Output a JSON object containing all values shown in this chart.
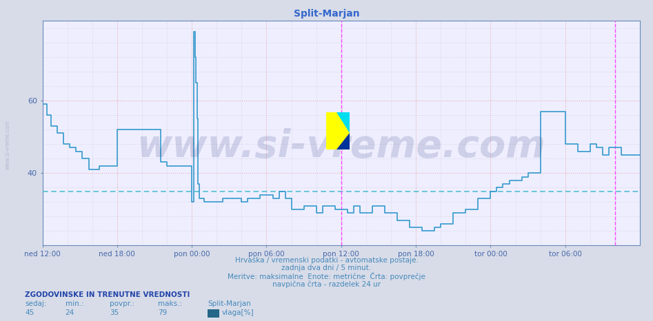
{
  "title": "Split-Marjan",
  "title_color": "#3366cc",
  "bg_color": "#d8dce8",
  "plot_bg_color": "#eeeeff",
  "ylabel": "",
  "xlabel": "",
  "xlim": [
    0,
    576
  ],
  "ylim": [
    20,
    82
  ],
  "yticks": [
    40,
    60
  ],
  "avg_line_y": 35,
  "avg_line_color": "#44bbcc",
  "vline1_x": 288,
  "vline2_x": 552,
  "vline_color": "#ff44ff",
  "line_color": "#3399cc",
  "line_width": 1.2,
  "watermark_text": "www.si-vreme.com",
  "watermark_color": "#1a2266",
  "watermark_alpha": 0.15,
  "watermark_fontsize": 40,
  "footer_line1": "Hrvaška / vremenski podatki - avtomatske postaje.",
  "footer_line2": "zadnja dva dni / 5 minut.",
  "footer_line3": "Meritve: maksimalne  Enote: metrične  Črta: povprečje",
  "footer_line4": "navpična črta - razdelek 24 ur",
  "footer_color": "#4488bb",
  "stats_header": "ZGODOVINSKE IN TRENUTNE VREDNOSTI",
  "stats_labels": [
    "sedaj:",
    "min.:",
    "povpr.:",
    "maks.:"
  ],
  "stats_values": [
    45,
    24,
    35,
    79
  ],
  "stats_station": "Split-Marjan",
  "stats_param": "vlaga[%]",
  "stats_color": "#4488bb",
  "stats_color_bold": "#2244aa",
  "legend_color": "#226688",
  "grid_major_color": "#e8aaaa",
  "grid_minor_color": "#ccccdd",
  "spine_color": "#6688bb",
  "tick_color": "#4466aa",
  "segment_data": [
    [
      0,
      4,
      59
    ],
    [
      4,
      8,
      56
    ],
    [
      8,
      14,
      53
    ],
    [
      14,
      20,
      51
    ],
    [
      20,
      26,
      48
    ],
    [
      26,
      32,
      47
    ],
    [
      32,
      38,
      46
    ],
    [
      38,
      45,
      44
    ],
    [
      45,
      55,
      41
    ],
    [
      55,
      60,
      42
    ],
    [
      60,
      72,
      42
    ],
    [
      72,
      84,
      52
    ],
    [
      84,
      96,
      52
    ],
    [
      96,
      114,
      52
    ],
    [
      114,
      120,
      43
    ],
    [
      120,
      126,
      42
    ],
    [
      126,
      132,
      42
    ],
    [
      132,
      144,
      42
    ],
    [
      144,
      146,
      32
    ],
    [
      146,
      147,
      79
    ],
    [
      147,
      148,
      72
    ],
    [
      148,
      149,
      65
    ],
    [
      149,
      150,
      55
    ],
    [
      150,
      151,
      37
    ],
    [
      151,
      156,
      33
    ],
    [
      156,
      162,
      32
    ],
    [
      162,
      174,
      32
    ],
    [
      174,
      180,
      33
    ],
    [
      180,
      192,
      33
    ],
    [
      192,
      198,
      32
    ],
    [
      198,
      210,
      33
    ],
    [
      210,
      216,
      34
    ],
    [
      216,
      222,
      34
    ],
    [
      222,
      228,
      33
    ],
    [
      228,
      234,
      35
    ],
    [
      234,
      240,
      33
    ],
    [
      240,
      252,
      30
    ],
    [
      252,
      264,
      31
    ],
    [
      264,
      270,
      29
    ],
    [
      270,
      282,
      31
    ],
    [
      282,
      288,
      30
    ],
    [
      288,
      294,
      30
    ],
    [
      294,
      300,
      29
    ],
    [
      300,
      306,
      31
    ],
    [
      306,
      318,
      29
    ],
    [
      318,
      330,
      31
    ],
    [
      330,
      342,
      29
    ],
    [
      342,
      354,
      27
    ],
    [
      354,
      366,
      25
    ],
    [
      366,
      378,
      24
    ],
    [
      378,
      384,
      25
    ],
    [
      384,
      396,
      26
    ],
    [
      396,
      408,
      29
    ],
    [
      408,
      420,
      30
    ],
    [
      420,
      432,
      33
    ],
    [
      432,
      438,
      35
    ],
    [
      438,
      444,
      36
    ],
    [
      444,
      450,
      37
    ],
    [
      450,
      462,
      38
    ],
    [
      462,
      468,
      39
    ],
    [
      468,
      480,
      40
    ],
    [
      480,
      492,
      57
    ],
    [
      492,
      504,
      57
    ],
    [
      504,
      516,
      48
    ],
    [
      516,
      528,
      46
    ],
    [
      528,
      534,
      48
    ],
    [
      534,
      540,
      47
    ],
    [
      540,
      546,
      45
    ],
    [
      546,
      558,
      47
    ],
    [
      558,
      570,
      45
    ],
    [
      570,
      576,
      45
    ]
  ]
}
